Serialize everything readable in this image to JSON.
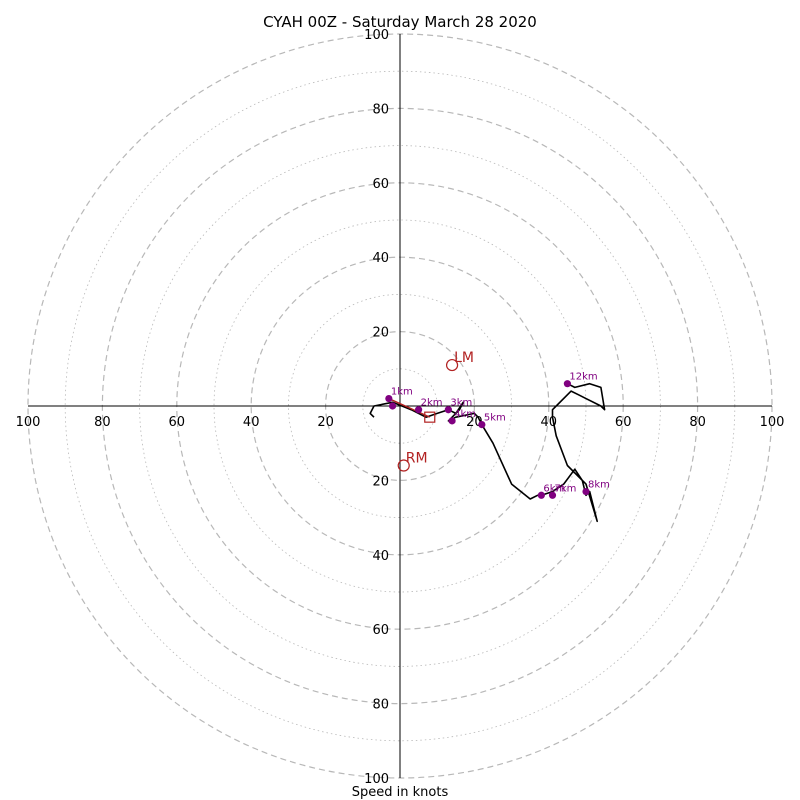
{
  "chart_data": {
    "type": "scatter",
    "title": "CYAH 00Z - Saturday March 28 2020",
    "xlabel": "Speed in knots",
    "ylabel": "",
    "range_knots": 100,
    "ring_step_knots": 20,
    "x_tick_labels": [
      "100",
      "80",
      "60",
      "40",
      "20",
      "20",
      "40",
      "60",
      "80",
      "100"
    ],
    "y_tick_labels": [
      "100",
      "80",
      "60",
      "40",
      "20",
      "20",
      "40",
      "60",
      "80",
      "100"
    ],
    "trace_color": "#000000",
    "marker_color": "#800080",
    "motion_color": "#b22222",
    "hodograph": [
      [
        -7,
        -3
      ],
      [
        -8,
        -2
      ],
      [
        -7,
        0
      ],
      [
        -2,
        1
      ],
      [
        3,
        -1
      ],
      [
        7,
        -3
      ],
      [
        10,
        -2
      ],
      [
        13,
        -1
      ],
      [
        15,
        -2
      ],
      [
        16,
        -1
      ],
      [
        17,
        1
      ],
      [
        15,
        -2
      ],
      [
        13,
        -4
      ],
      [
        15,
        -3
      ],
      [
        20,
        -2
      ],
      [
        21,
        -3
      ],
      [
        22,
        -5
      ],
      [
        25,
        -10
      ],
      [
        30,
        -21
      ],
      [
        35,
        -25
      ],
      [
        37,
        -24
      ],
      [
        38,
        -24
      ],
      [
        41,
        -23
      ],
      [
        44,
        -21
      ],
      [
        47,
        -17
      ],
      [
        49,
        -20
      ],
      [
        50,
        -24
      ],
      [
        51,
        -23
      ],
      [
        53,
        -31
      ],
      [
        50,
        -21
      ],
      [
        45,
        -16
      ],
      [
        42,
        -8
      ],
      [
        41,
        -3
      ],
      [
        41,
        -1
      ],
      [
        42,
        0
      ],
      [
        46,
        4
      ],
      [
        48,
        3
      ],
      [
        50,
        2
      ],
      [
        54,
        0
      ],
      [
        55,
        -1
      ],
      [
        54,
        5
      ],
      [
        51,
        6
      ],
      [
        47,
        5
      ],
      [
        45,
        6
      ]
    ],
    "height_markers": [
      {
        "label": "1km",
        "u": -3,
        "v": 2
      },
      {
        "label": "",
        "u": -2,
        "v": 0
      },
      {
        "label": "2km",
        "u": 5,
        "v": -1
      },
      {
        "label": "3km",
        "u": 13,
        "v": -1
      },
      {
        "label": "4km",
        "u": 14,
        "v": -4
      },
      {
        "label": "5km",
        "u": 22,
        "v": -5
      },
      {
        "label": "6km",
        "u": 38,
        "v": -24
      },
      {
        "label": "7km",
        "u": 41,
        "v": -24
      },
      {
        "label": "8km",
        "u": 50,
        "v": -23
      },
      {
        "label": "12km",
        "u": 45,
        "v": 6
      }
    ],
    "storm_motion": [
      {
        "label": "LM",
        "u": 14,
        "v": 11
      },
      {
        "label": "RM",
        "u": 1,
        "v": -16
      }
    ],
    "mean_wind": {
      "u": 8,
      "v": -3
    }
  }
}
